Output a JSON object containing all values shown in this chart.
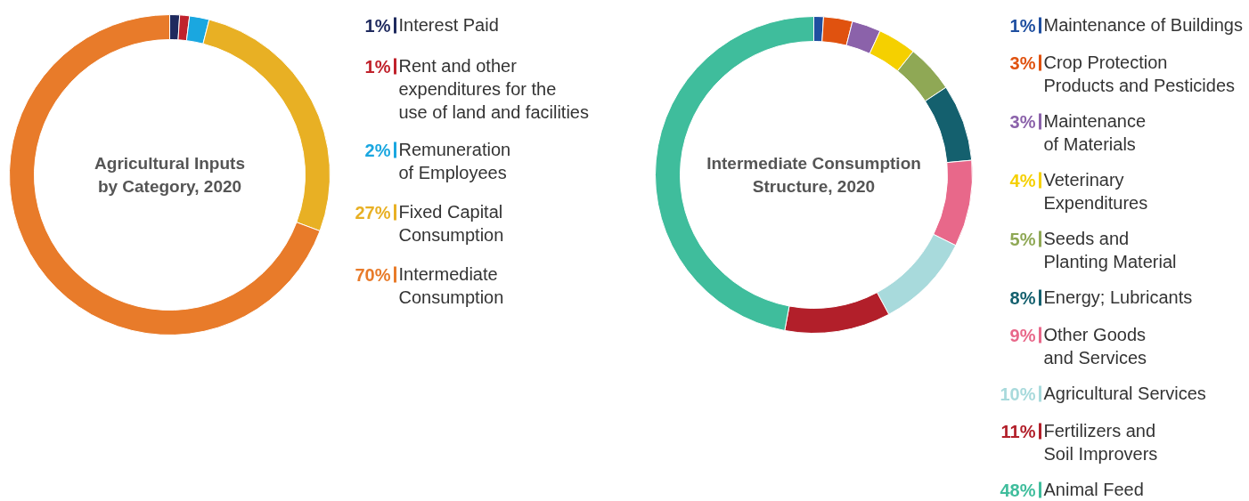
{
  "chart_data": [
    {
      "type": "donut",
      "title": "Agricultural Inputs\nby Category, 2020",
      "legend": "right",
      "categories": [
        "Interest Paid",
        "Rent and other\nexpenditures for the\nuse of land and facilities",
        "Remuneration\nof Employees",
        "Fixed Capital\nConsumption",
        "Intermediate\nConsumption"
      ],
      "values": [
        1,
        1,
        2,
        27,
        70
      ],
      "value_labels": [
        "1%",
        "1%",
        "2%",
        "27%",
        "70%"
      ],
      "colors": [
        "#1f2a5e",
        "#c0222c",
        "#1aa7e0",
        "#e8b024",
        "#e87b2a"
      ]
    },
    {
      "type": "donut",
      "title": "Intermediate Consumption\nStructure, 2020",
      "legend": "right",
      "categories": [
        "Maintenance of Buildings",
        "Crop Protection\nProducts and Pesticides",
        "Maintenance\nof Materials",
        "Veterinary\nExpenditures",
        "Seeds and\nPlanting Material",
        "Energy; Lubricants",
        "Other Goods\nand Services",
        "Agricultural Services",
        "Fertilizers and\nSoil Improvers",
        "Animal Feed"
      ],
      "values": [
        1,
        3,
        3,
        4,
        5,
        8,
        9,
        10,
        11,
        48
      ],
      "value_labels": [
        "1%",
        "3%",
        "3%",
        "4%",
        "5%",
        "8%",
        "9%",
        "10%",
        "11%",
        "48%"
      ],
      "colors": [
        "#1f4fa0",
        "#e0520f",
        "#8b62aa",
        "#f5d000",
        "#8fa855",
        "#14606e",
        "#e8688a",
        "#a8dadc",
        "#b21f2a",
        "#3fbd9c"
      ]
    }
  ]
}
